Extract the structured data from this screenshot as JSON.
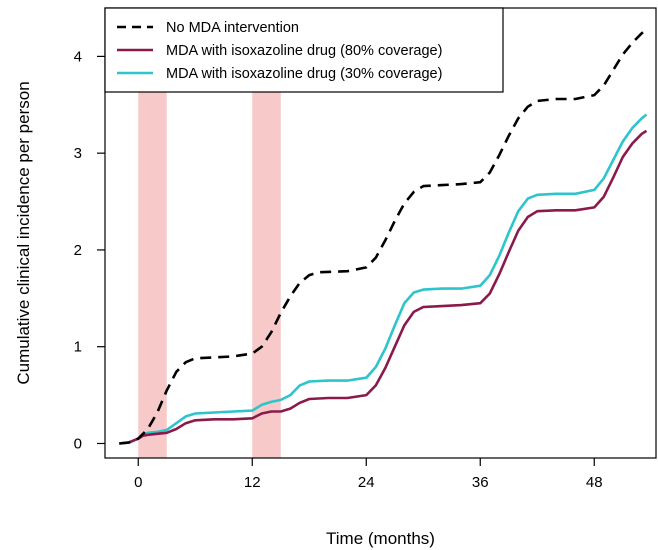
{
  "chart_data": {
    "type": "line",
    "xlabel": "Time (months)",
    "ylabel": "Cumulative clinical incidence per person",
    "xlim": [
      -3.5,
      54.5
    ],
    "ylim": [
      -0.15,
      4.5
    ],
    "x_ticks": [
      "0",
      "12",
      "24",
      "36",
      "48"
    ],
    "y_ticks": [
      "0",
      "1",
      "2",
      "3",
      "4"
    ],
    "legend_position": "top-left",
    "shaded_intervals": [
      {
        "start": 0,
        "end": 3,
        "color": "#f7c9c9"
      },
      {
        "start": 12,
        "end": 15,
        "color": "#f7c9c9"
      }
    ],
    "series": [
      {
        "name": "No MDA intervention",
        "color": "#000000",
        "dash": true,
        "points": [
          [
            -2,
            0.0
          ],
          [
            -1,
            0.01
          ],
          [
            0,
            0.05
          ],
          [
            1,
            0.15
          ],
          [
            2,
            0.32
          ],
          [
            3,
            0.55
          ],
          [
            4,
            0.74
          ],
          [
            5,
            0.84
          ],
          [
            6,
            0.88
          ],
          [
            8,
            0.89
          ],
          [
            10,
            0.9
          ],
          [
            12,
            0.93
          ],
          [
            13,
            1.0
          ],
          [
            14,
            1.15
          ],
          [
            15,
            1.35
          ],
          [
            16,
            1.52
          ],
          [
            17,
            1.66
          ],
          [
            18,
            1.74
          ],
          [
            19,
            1.77
          ],
          [
            22,
            1.78
          ],
          [
            24,
            1.82
          ],
          [
            25,
            1.92
          ],
          [
            26,
            2.1
          ],
          [
            27,
            2.3
          ],
          [
            28,
            2.48
          ],
          [
            29,
            2.6
          ],
          [
            30,
            2.66
          ],
          [
            32,
            2.67
          ],
          [
            34,
            2.68
          ],
          [
            36,
            2.7
          ],
          [
            37,
            2.8
          ],
          [
            38,
            2.98
          ],
          [
            39,
            3.18
          ],
          [
            40,
            3.36
          ],
          [
            41,
            3.48
          ],
          [
            42,
            3.54
          ],
          [
            44,
            3.56
          ],
          [
            46,
            3.56
          ],
          [
            48,
            3.6
          ],
          [
            49,
            3.7
          ],
          [
            50,
            3.86
          ],
          [
            51,
            4.02
          ],
          [
            52,
            4.14
          ],
          [
            53,
            4.24
          ],
          [
            53.5,
            4.28
          ]
        ]
      },
      {
        "name": "MDA with isoxazoline drug (80% coverage)",
        "color": "#8b1a4a",
        "dash": false,
        "points": [
          [
            -2,
            0.0
          ],
          [
            -1,
            0.01
          ],
          [
            0,
            0.05
          ],
          [
            0.5,
            0.08
          ],
          [
            1,
            0.09
          ],
          [
            2,
            0.1
          ],
          [
            3,
            0.11
          ],
          [
            4,
            0.15
          ],
          [
            5,
            0.21
          ],
          [
            6,
            0.24
          ],
          [
            8,
            0.25
          ],
          [
            10,
            0.25
          ],
          [
            12,
            0.26
          ],
          [
            13,
            0.31
          ],
          [
            14,
            0.33
          ],
          [
            15,
            0.33
          ],
          [
            16,
            0.36
          ],
          [
            17,
            0.42
          ],
          [
            18,
            0.46
          ],
          [
            20,
            0.47
          ],
          [
            22,
            0.47
          ],
          [
            24,
            0.5
          ],
          [
            25,
            0.6
          ],
          [
            26,
            0.78
          ],
          [
            27,
            1.0
          ],
          [
            28,
            1.22
          ],
          [
            29,
            1.36
          ],
          [
            30,
            1.41
          ],
          [
            32,
            1.42
          ],
          [
            34,
            1.43
          ],
          [
            36,
            1.45
          ],
          [
            37,
            1.55
          ],
          [
            38,
            1.75
          ],
          [
            39,
            1.98
          ],
          [
            40,
            2.2
          ],
          [
            41,
            2.34
          ],
          [
            42,
            2.4
          ],
          [
            44,
            2.41
          ],
          [
            46,
            2.41
          ],
          [
            48,
            2.44
          ],
          [
            49,
            2.55
          ],
          [
            50,
            2.75
          ],
          [
            51,
            2.96
          ],
          [
            52,
            3.1
          ],
          [
            53,
            3.2
          ],
          [
            53.5,
            3.23
          ]
        ]
      },
      {
        "name": "MDA with isoxazoline drug (30% coverage)",
        "color": "#2ec4cc",
        "dash": false,
        "points": [
          [
            -2,
            0.0
          ],
          [
            -1,
            0.01
          ],
          [
            0,
            0.05
          ],
          [
            0.5,
            0.09
          ],
          [
            1,
            0.11
          ],
          [
            2,
            0.12
          ],
          [
            3,
            0.14
          ],
          [
            4,
            0.21
          ],
          [
            5,
            0.28
          ],
          [
            6,
            0.31
          ],
          [
            8,
            0.32
          ],
          [
            10,
            0.33
          ],
          [
            12,
            0.34
          ],
          [
            13,
            0.4
          ],
          [
            14,
            0.43
          ],
          [
            15,
            0.45
          ],
          [
            16,
            0.5
          ],
          [
            17,
            0.6
          ],
          [
            18,
            0.64
          ],
          [
            20,
            0.65
          ],
          [
            22,
            0.65
          ],
          [
            24,
            0.68
          ],
          [
            25,
            0.79
          ],
          [
            26,
            0.98
          ],
          [
            27,
            1.22
          ],
          [
            28,
            1.45
          ],
          [
            29,
            1.56
          ],
          [
            30,
            1.59
          ],
          [
            32,
            1.6
          ],
          [
            34,
            1.6
          ],
          [
            36,
            1.63
          ],
          [
            37,
            1.74
          ],
          [
            38,
            1.94
          ],
          [
            39,
            2.18
          ],
          [
            40,
            2.4
          ],
          [
            41,
            2.53
          ],
          [
            42,
            2.57
          ],
          [
            44,
            2.58
          ],
          [
            46,
            2.58
          ],
          [
            48,
            2.62
          ],
          [
            49,
            2.74
          ],
          [
            50,
            2.93
          ],
          [
            51,
            3.12
          ],
          [
            52,
            3.26
          ],
          [
            53,
            3.36
          ],
          [
            53.5,
            3.4
          ]
        ]
      }
    ]
  }
}
